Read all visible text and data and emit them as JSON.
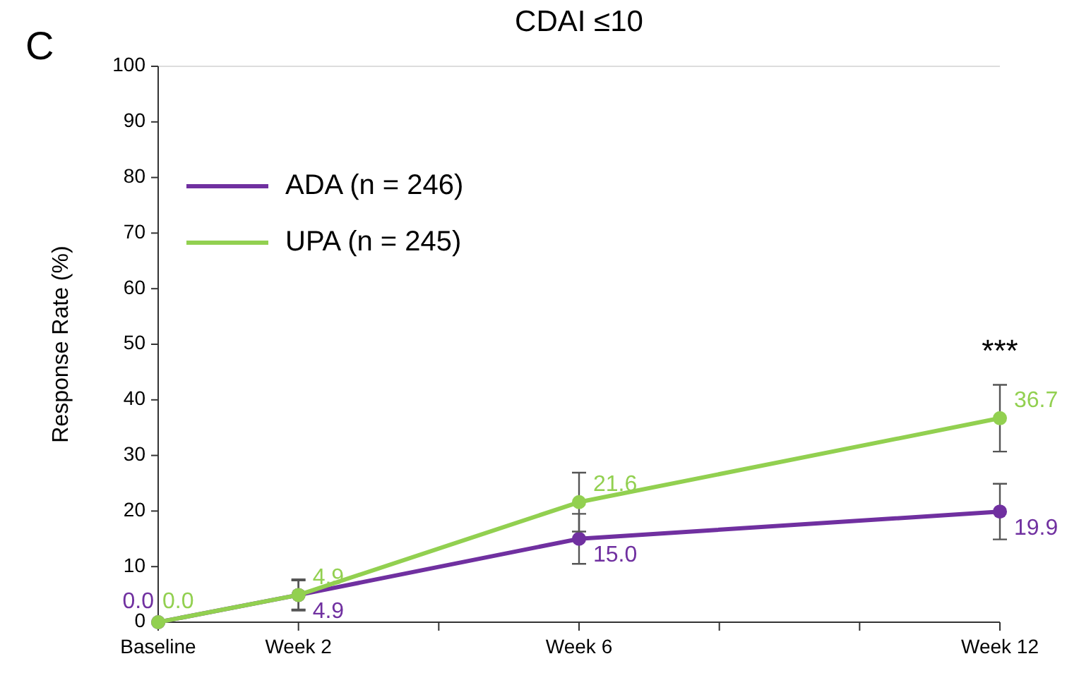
{
  "chart_data": {
    "type": "line",
    "title": "CDAI ≤10",
    "ylabel": "Response Rate (%)",
    "categories": [
      "Baseline",
      "Week 2",
      null,
      "Week 6",
      null,
      null,
      "Week 12"
    ],
    "series": [
      {
        "name": "ADA (n = 246)",
        "color": "#7030a0",
        "values": [
          0.0,
          4.9,
          null,
          15.0,
          null,
          null,
          19.9
        ],
        "value_labels": [
          "0.0",
          "4.9",
          null,
          "15.0",
          null,
          null,
          "19.9"
        ],
        "errors": [
          null,
          2.6,
          null,
          4.5,
          null,
          null,
          5.0
        ]
      },
      {
        "name": "UPA (n = 245)",
        "color": "#92d050",
        "values": [
          0.0,
          4.9,
          null,
          21.6,
          null,
          null,
          36.7
        ],
        "value_labels": [
          "0.0",
          "4.9",
          null,
          "21.6",
          null,
          null,
          "36.7"
        ],
        "errors": [
          null,
          2.8,
          null,
          5.3,
          null,
          null,
          6.0
        ]
      }
    ],
    "ylim": [
      0,
      100
    ],
    "yticks": [
      0,
      10,
      20,
      30,
      40,
      50,
      60,
      70,
      80,
      90,
      100
    ],
    "legend": "top left",
    "marker": "circle",
    "line_style": "solid",
    "annotations": [
      "C",
      "***"
    ]
  }
}
